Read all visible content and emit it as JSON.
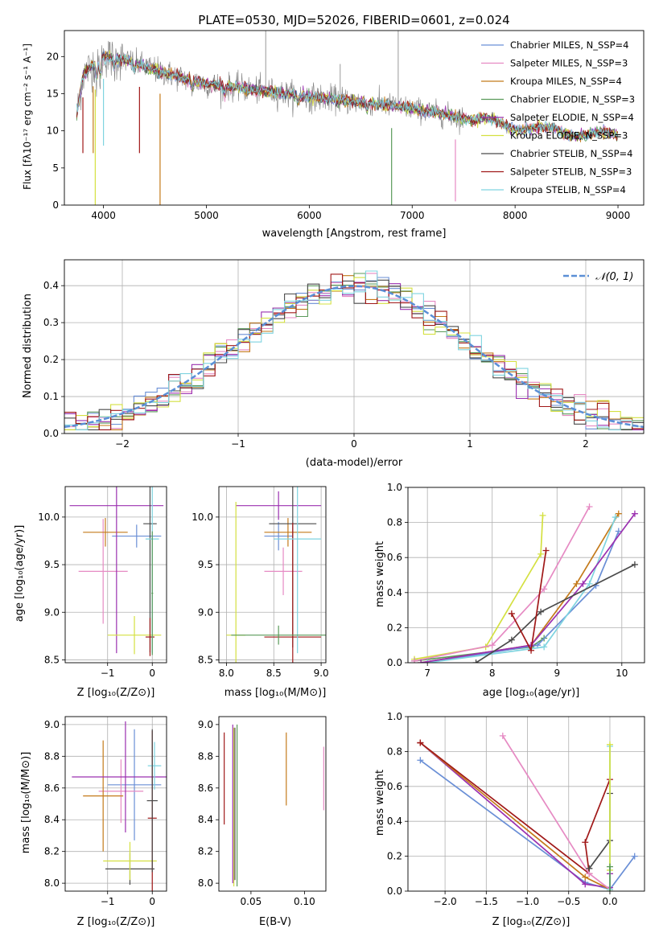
{
  "figure": {
    "title": "PLATE=0530, MJD=52026, FIBERID=0601, z=0.024"
  },
  "chart_data": [
    {
      "id": "spectrum",
      "type": "line",
      "xlabel": "wavelength [Angstrom, rest frame]",
      "ylabel": "Flux [fλ10⁻¹⁷ erg cm⁻² s⁻¹ A⁻¹]",
      "xlim": [
        3620,
        9250
      ],
      "ylim": [
        0,
        23.5
      ],
      "xticks": [
        4000,
        5000,
        6000,
        7000,
        8000,
        9000
      ],
      "yticks": [
        0,
        5,
        10,
        15,
        20
      ],
      "legend_position": "upper right",
      "observed_color": "#7f7f7f",
      "model_continuum": {
        "x": [
          3740,
          3800,
          3900,
          4000,
          4100,
          4250,
          4500,
          4800,
          5000,
          5300,
          5600,
          6000,
          6300,
          6600,
          6900,
          7200,
          7500,
          7800,
          8000,
          8300,
          8600,
          8800,
          9000
        ],
        "y": [
          12.0,
          17.5,
          19.0,
          20.0,
          19.8,
          19.4,
          18.2,
          17.0,
          16.3,
          15.8,
          15.3,
          14.6,
          14.2,
          13.7,
          13.2,
          12.5,
          11.6,
          11.1,
          10.6,
          10.1,
          9.7,
          9.5,
          9.3
        ]
      },
      "series": [
        {
          "name": "Chabrier MILES, N_SSP=4",
          "color": "#6a8fd6"
        },
        {
          "name": "Salpeter MILES, N_SSP=3",
          "color": "#e68ac3"
        },
        {
          "name": "Kroupa MILES, N_SSP=4",
          "color": "#c47a1a"
        },
        {
          "name": "Chabrier ELODIE, N_SSP=3",
          "color": "#5a9a5a"
        },
        {
          "name": "Salpeter ELODIE, N_SSP=4",
          "color": "#9b30b0"
        },
        {
          "name": "Kroupa ELODIE, N_SSP=3",
          "color": "#d4e040"
        },
        {
          "name": "Chabrier STELIB, N_SSP=4",
          "color": "#4a4a4a"
        },
        {
          "name": "Salpeter STELIB, N_SSP=3",
          "color": "#a01818"
        },
        {
          "name": "Kroupa STELIB, N_SSP=4",
          "color": "#7fd4e0"
        }
      ]
    },
    {
      "id": "residuals",
      "type": "histogram",
      "xlabel": "(data-model)/error",
      "ylabel": "Normed distribution",
      "xlim": [
        -2.5,
        2.5
      ],
      "ylim": [
        0,
        0.47
      ],
      "xticks": [
        -2,
        -1,
        0,
        1,
        2
      ],
      "yticks": [
        0.0,
        0.1,
        0.2,
        0.3,
        0.4
      ],
      "grid": true,
      "legend_position": "upper right",
      "reference": {
        "name": "𝒩(0, 1)",
        "color": "#5b8fd6"
      }
    },
    {
      "id": "age_vs_Z",
      "type": "errorbar",
      "xlabel": "Z [log₁₀(Z/Z⊙)]",
      "ylabel": "age  [log₁₀(age/yr)]",
      "xlim": [
        -1.95,
        0.32
      ],
      "ylim": [
        8.47,
        10.32
      ],
      "xticks": [
        -1,
        0
      ],
      "yticks": [
        8.5,
        9.0,
        9.5,
        10.0
      ],
      "grid": true,
      "points": [
        {
          "x": -0.35,
          "y": 9.8,
          "xerr": 0.55,
          "yerr": 0.12,
          "color": "#6a8fd6"
        },
        {
          "x": -1.1,
          "y": 9.43,
          "xerr": 0.55,
          "yerr": 0.55,
          "color": "#e68ac3"
        },
        {
          "x": -1.05,
          "y": 9.84,
          "xerr": 0.5,
          "yerr": 0.15,
          "color": "#c47a1a"
        },
        {
          "x": -0.8,
          "y": 10.12,
          "xerr": 1.05,
          "yerr": 1.55,
          "color": "#9b30b0"
        },
        {
          "x": -0.05,
          "y": 9.93,
          "xerr": 0.15,
          "yerr": 1.35,
          "color": "#4a4a4a"
        },
        {
          "x": -0.4,
          "y": 8.76,
          "xerr": 0.6,
          "yerr": 0.2,
          "color": "#d4e040"
        },
        {
          "x": -0.05,
          "y": 8.74,
          "xerr": 0.1,
          "yerr": 0.2,
          "color": "#a01818"
        },
        {
          "x": 0.0,
          "y": 9.77,
          "xerr": 0.15,
          "yerr": 1.2,
          "color": "#7fd4e0"
        },
        {
          "x": 0.0,
          "y": 9.2,
          "xerr": 0.02,
          "yerr": 0.65,
          "color": "#5a9a5a"
        }
      ]
    },
    {
      "id": "age_vs_mass",
      "type": "errorbar",
      "xlabel": "mass [log₁₀(M/M⊙)]",
      "ylabel": "",
      "xlim": [
        7.92,
        9.05
      ],
      "ylim": [
        8.47,
        10.32
      ],
      "xticks": [
        8.0,
        8.5,
        9.0
      ],
      "yticks": [
        8.5,
        9.0,
        9.5,
        10.0
      ],
      "grid": true,
      "points": [
        {
          "x": 8.55,
          "y": 9.8,
          "xerr": 0.15,
          "yerr": 0.15,
          "color": "#6a8fd6"
        },
        {
          "x": 8.6,
          "y": 9.43,
          "xerr": 0.2,
          "yerr": 0.25,
          "color": "#e68ac3"
        },
        {
          "x": 8.65,
          "y": 9.84,
          "xerr": 0.25,
          "yerr": 0.15,
          "color": "#c47a1a"
        },
        {
          "x": 8.55,
          "y": 10.12,
          "xerr": 0.45,
          "yerr": 0.15,
          "color": "#9b30b0"
        },
        {
          "x": 8.7,
          "y": 9.93,
          "xerr": 0.25,
          "yerr": 1.3,
          "color": "#4a4a4a"
        },
        {
          "x": 8.1,
          "y": 8.76,
          "xerr": 0.1,
          "yerr": 1.4,
          "color": "#d4e040"
        },
        {
          "x": 8.7,
          "y": 8.74,
          "xerr": 0.3,
          "yerr": 1.2,
          "color": "#a01818"
        },
        {
          "x": 8.75,
          "y": 9.77,
          "xerr": 0.25,
          "yerr": 1.2,
          "color": "#7fd4e0"
        },
        {
          "x": 8.55,
          "y": 8.76,
          "xerr": 0.5,
          "yerr": 0.1,
          "color": "#5a9a5a"
        }
      ]
    },
    {
      "id": "mass_weight_vs_age",
      "type": "line",
      "xlabel": "age  [log₁₀(age/yr)]",
      "ylabel": "mass weight",
      "xlim": [
        6.7,
        10.35
      ],
      "ylim": [
        0,
        1.0
      ],
      "xticks": [
        7,
        8,
        9,
        10
      ],
      "yticks": [
        0.0,
        0.2,
        0.4,
        0.6,
        0.8,
        1.0
      ],
      "grid": true,
      "series": [
        {
          "color": "#d4e040",
          "x": [
            6.8,
            7.9,
            8.75,
            8.78
          ],
          "y": [
            0.02,
            0.09,
            0.62,
            0.84
          ]
        },
        {
          "color": "#5a9a5a",
          "x": [
            6.8,
            8.6,
            8.8
          ],
          "y": [
            0.01,
            0.09,
            0.14
          ]
        },
        {
          "color": "#e68ac3",
          "x": [
            6.8,
            8.0,
            8.8,
            9.5
          ],
          "y": [
            0.01,
            0.1,
            0.42,
            0.89
          ]
        },
        {
          "color": "#c47a1a",
          "x": [
            6.9,
            8.6,
            9.3,
            9.95
          ],
          "y": [
            0.0,
            0.1,
            0.45,
            0.85
          ]
        },
        {
          "color": "#6a8fd6",
          "x": [
            7.0,
            8.7,
            9.6,
            9.95
          ],
          "y": [
            0.0,
            0.1,
            0.44,
            0.75
          ]
        },
        {
          "color": "#7fd4e0",
          "x": [
            7.0,
            8.8,
            9.5,
            9.9
          ],
          "y": [
            0.0,
            0.09,
            0.45,
            0.83
          ]
        },
        {
          "color": "#9b30b0",
          "x": [
            6.9,
            8.6,
            9.4,
            10.2
          ],
          "y": [
            0.0,
            0.1,
            0.45,
            0.85
          ]
        },
        {
          "color": "#4a4a4a",
          "x": [
            7.75,
            8.3,
            8.75,
            10.2
          ],
          "y": [
            0.0,
            0.13,
            0.29,
            0.56
          ]
        },
        {
          "color": "#a01818",
          "x": [
            8.3,
            8.6,
            8.83
          ],
          "y": [
            0.28,
            0.07,
            0.64
          ]
        }
      ]
    },
    {
      "id": "mass_vs_Z",
      "type": "errorbar",
      "xlabel": "Z [log₁₀(Z/Z⊙)]",
      "ylabel": "mass [log₁₀(M/M⊙)]",
      "xlim": [
        -1.95,
        0.32
      ],
      "ylim": [
        7.95,
        9.05
      ],
      "xticks": [
        -1,
        0
      ],
      "yticks": [
        8.0,
        8.2,
        8.4,
        8.6,
        8.8,
        9.0
      ],
      "grid": true,
      "points": [
        {
          "x": -0.4,
          "y": 8.62,
          "xerr": 0.6,
          "yerr": 0.35,
          "color": "#6a8fd6"
        },
        {
          "x": -0.7,
          "y": 8.58,
          "xerr": 0.5,
          "yerr": 0.2,
          "color": "#e68ac3"
        },
        {
          "x": -1.1,
          "y": 8.55,
          "xerr": 0.45,
          "yerr": 0.35,
          "color": "#c47a1a"
        },
        {
          "x": -0.6,
          "y": 8.67,
          "xerr": 1.2,
          "yerr": 0.35,
          "color": "#9b30b0"
        },
        {
          "x": -0.5,
          "y": 8.09,
          "xerr": 0.55,
          "yerr": 0.1,
          "color": "#4a4a4a"
        },
        {
          "x": -0.5,
          "y": 8.14,
          "xerr": 0.6,
          "yerr": 0.12,
          "color": "#d4e040"
        },
        {
          "x": 0.0,
          "y": 8.41,
          "xerr": 0.1,
          "yerr": 0.55,
          "color": "#a01818"
        },
        {
          "x": 0.05,
          "y": 8.74,
          "xerr": 0.15,
          "yerr": 0.15,
          "color": "#7fd4e0"
        },
        {
          "x": 0.0,
          "y": 8.52,
          "xerr": 0.12,
          "yerr": 0.45,
          "color": "#4a4a4a"
        }
      ]
    },
    {
      "id": "mass_vs_ebv",
      "type": "errorbar",
      "xlabel": "E(B-V)",
      "ylabel": "",
      "xlim": [
        0.02,
        0.12
      ],
      "ylim": [
        7.95,
        9.05
      ],
      "xticks": [
        0.05,
        0.1
      ],
      "yticks": [
        8.0,
        8.2,
        8.4,
        8.6,
        8.8,
        9.0
      ],
      "grid": false,
      "points": [
        {
          "x": 0.025,
          "y": 8.66,
          "xerr": 0.0,
          "yerr": 0.29,
          "color": "#a01818"
        },
        {
          "x": 0.033,
          "y": 8.5,
          "xerr": 0.0,
          "yerr": 0.5,
          "color": "#9b30b0"
        },
        {
          "x": 0.034,
          "y": 8.48,
          "xerr": 0.0,
          "yerr": 0.5,
          "color": "#d4e040"
        },
        {
          "x": 0.035,
          "y": 8.5,
          "xerr": 0.0,
          "yerr": 0.48,
          "color": "#4a4a4a"
        },
        {
          "x": 0.037,
          "y": 8.49,
          "xerr": 0.0,
          "yerr": 0.51,
          "color": "#5a9a5a"
        },
        {
          "x": 0.083,
          "y": 8.72,
          "xerr": 0.0,
          "yerr": 0.23,
          "color": "#c47a1a"
        },
        {
          "x": 0.118,
          "y": 8.66,
          "xerr": 0.0,
          "yerr": 0.2,
          "color": "#e68ac3"
        }
      ]
    },
    {
      "id": "mass_weight_vs_Z",
      "type": "line",
      "xlabel": "Z [log₁₀(Z/Z⊙)]",
      "ylabel": "mass weight",
      "xlim": [
        -2.45,
        0.42
      ],
      "ylim": [
        0,
        1.0
      ],
      "xticks": [
        -2.0,
        -1.5,
        -1.0,
        -0.5,
        0.0
      ],
      "yticks": [
        0.0,
        0.2,
        0.4,
        0.6,
        0.8,
        1.0
      ],
      "grid": true,
      "series": [
        {
          "color": "#6a8fd6",
          "x": [
            -2.3,
            -0.3,
            0.0,
            0.3
          ],
          "y": [
            0.75,
            0.05,
            0.01,
            0.2
          ]
        },
        {
          "color": "#9b30b0",
          "x": [
            -2.3,
            -0.3,
            0.0,
            0.0
          ],
          "y": [
            0.85,
            0.04,
            0.02,
            0.1
          ]
        },
        {
          "color": "#c47a1a",
          "x": [
            -2.3,
            -0.3,
            0.0
          ],
          "y": [
            0.85,
            0.08,
            0.01
          ]
        },
        {
          "color": "#a01818",
          "x": [
            -2.3,
            -0.25,
            -0.3,
            0.0
          ],
          "y": [
            0.85,
            0.1,
            0.28,
            0.64
          ]
        },
        {
          "color": "#e68ac3",
          "x": [
            -1.3,
            -0.25,
            0.0
          ],
          "y": [
            0.89,
            0.1,
            0.01
          ]
        },
        {
          "color": "#4a4a4a",
          "x": [
            -0.25,
            0.0,
            0.0
          ],
          "y": [
            0.13,
            0.29,
            0.56
          ]
        },
        {
          "color": "#7fd4e0",
          "x": [
            0.0,
            0.0
          ],
          "y": [
            0.01,
            0.83
          ]
        },
        {
          "color": "#d4e040",
          "x": [
            0.0,
            0.0
          ],
          "y": [
            0.12,
            0.84
          ]
        },
        {
          "color": "#5a9a5a",
          "x": [
            0.0,
            0.0
          ],
          "y": [
            0.0,
            0.14
          ]
        }
      ]
    }
  ]
}
